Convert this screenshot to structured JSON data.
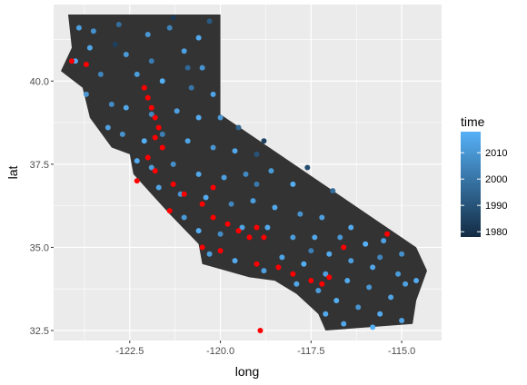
{
  "chart_data": {
    "type": "scatter",
    "xlabel": "long",
    "ylabel": "lat",
    "xlim": [
      -124.6,
      -113.9
    ],
    "ylim": [
      32.2,
      42.3
    ],
    "x_ticks": [
      -122.5,
      -120.0,
      -117.5,
      -115.0
    ],
    "x_tick_labels": [
      "-122.5",
      "-120.0",
      "-117.5",
      "-115.0"
    ],
    "y_ticks": [
      32.5,
      35.0,
      37.5,
      40.0
    ],
    "y_tick_labels": [
      "32.5",
      "35.0",
      "37.5",
      "40.0"
    ],
    "grid": true,
    "panel_background": "#ebebeb",
    "grid_color": "#ffffff",
    "map_fill": "#333333",
    "highlight_color": "#ff0000",
    "legend": {
      "title": "time",
      "placement": "right",
      "range": [
        1978,
        2018
      ],
      "low_color": "#132b43",
      "high_color": "#56b1f7",
      "ticks": [
        1980,
        1990,
        2000,
        2010
      ],
      "tick_labels": [
        "1980",
        "1990",
        "2000",
        "2010"
      ]
    },
    "state_outline": [
      [
        -124.2,
        42.0
      ],
      [
        -120.0,
        42.0
      ],
      [
        -120.0,
        39.0
      ],
      [
        -114.6,
        35.0
      ],
      [
        -114.3,
        34.3
      ],
      [
        -114.6,
        33.4
      ],
      [
        -114.7,
        32.7
      ],
      [
        -117.1,
        32.5
      ],
      [
        -117.3,
        33.0
      ],
      [
        -117.9,
        33.6
      ],
      [
        -118.5,
        34.0
      ],
      [
        -119.2,
        34.1
      ],
      [
        -120.5,
        34.5
      ],
      [
        -120.6,
        35.1
      ],
      [
        -121.4,
        36.0
      ],
      [
        -121.9,
        36.6
      ],
      [
        -122.4,
        37.2
      ],
      [
        -122.5,
        37.8
      ],
      [
        -123.0,
        38.0
      ],
      [
        -123.6,
        38.9
      ],
      [
        -123.8,
        39.8
      ],
      [
        -124.4,
        40.3
      ],
      [
        -124.1,
        41.0
      ],
      [
        -124.2,
        42.0
      ]
    ],
    "series": [
      {
        "kind": "observations",
        "points": [
          [
            -123.9,
            41.6,
            2012
          ],
          [
            -123.5,
            41.5,
            2008
          ],
          [
            -122.8,
            41.7,
            1998
          ],
          [
            -122.0,
            41.4,
            2010
          ],
          [
            -121.4,
            41.6,
            2004
          ],
          [
            -120.6,
            41.3,
            2015
          ],
          [
            -120.3,
            41.8,
            1992
          ],
          [
            -123.6,
            41.0,
            2014
          ],
          [
            -122.6,
            40.8,
            2011
          ],
          [
            -121.9,
            40.6,
            2002
          ],
          [
            -121.0,
            40.9,
            2013
          ],
          [
            -120.5,
            40.4,
            2009
          ],
          [
            -124.0,
            40.6,
            2016
          ],
          [
            -123.3,
            40.2,
            2005
          ],
          [
            -122.3,
            40.2,
            2012
          ],
          [
            -121.6,
            40.0,
            2017
          ],
          [
            -120.8,
            39.8,
            2000
          ],
          [
            -120.2,
            39.6,
            2014
          ],
          [
            -123.7,
            39.6,
            2010
          ],
          [
            -123.0,
            39.3,
            2007
          ],
          [
            -122.6,
            39.2,
            2015
          ],
          [
            -121.9,
            39.0,
            2006
          ],
          [
            -121.2,
            39.1,
            2013
          ],
          [
            -120.6,
            38.9,
            2016
          ],
          [
            -120.0,
            38.9,
            2011
          ],
          [
            -119.5,
            38.6,
            1995
          ],
          [
            -123.1,
            38.6,
            2013
          ],
          [
            -122.7,
            38.4,
            2009
          ],
          [
            -122.1,
            38.2,
            2017
          ],
          [
            -121.6,
            38.4,
            2003
          ],
          [
            -120.9,
            38.2,
            2014
          ],
          [
            -120.2,
            38.0,
            2010
          ],
          [
            -119.6,
            37.9,
            2015
          ],
          [
            -119.0,
            37.8,
            1990
          ],
          [
            -122.3,
            37.6,
            2016
          ],
          [
            -121.9,
            37.4,
            2012
          ],
          [
            -121.3,
            37.5,
            2008
          ],
          [
            -120.6,
            37.2,
            2015
          ],
          [
            -119.9,
            37.1,
            2013
          ],
          [
            -119.3,
            37.2,
            2006
          ],
          [
            -118.6,
            37.3,
            2011
          ],
          [
            -118.0,
            36.9,
            2017
          ],
          [
            -121.7,
            36.8,
            2014
          ],
          [
            -121.1,
            36.6,
            2010
          ],
          [
            -120.4,
            36.5,
            2016
          ],
          [
            -119.7,
            36.3,
            2005
          ],
          [
            -119.1,
            36.4,
            2012
          ],
          [
            -118.5,
            36.2,
            2015
          ],
          [
            -117.8,
            36.0,
            2009
          ],
          [
            -117.2,
            35.9,
            2013
          ],
          [
            -121.0,
            35.9,
            2011
          ],
          [
            -120.6,
            35.5,
            2017
          ],
          [
            -120.0,
            35.4,
            2007
          ],
          [
            -119.4,
            35.6,
            2014
          ],
          [
            -118.7,
            35.6,
            2016
          ],
          [
            -118.0,
            35.3,
            2012
          ],
          [
            -117.4,
            35.3,
            2015
          ],
          [
            -116.7,
            35.3,
            2010
          ],
          [
            -116.0,
            35.1,
            2018
          ],
          [
            -115.5,
            35.2,
            2013
          ],
          [
            -115.0,
            34.8,
            2008
          ],
          [
            -117.0,
            34.8,
            2016
          ],
          [
            -116.4,
            34.6,
            2012
          ],
          [
            -115.8,
            34.4,
            2015
          ],
          [
            -115.1,
            34.2,
            2011
          ],
          [
            -114.6,
            34.0,
            2016
          ],
          [
            -118.3,
            34.7,
            2014
          ],
          [
            -117.7,
            34.5,
            2017
          ],
          [
            -117.1,
            34.2,
            2013
          ],
          [
            -116.5,
            34.0,
            2016
          ],
          [
            -115.9,
            33.8,
            2010
          ],
          [
            -115.3,
            33.5,
            2014
          ],
          [
            -117.9,
            33.9,
            2015
          ],
          [
            -117.3,
            33.7,
            2012
          ],
          [
            -116.8,
            33.4,
            2017
          ],
          [
            -116.2,
            33.2,
            2009
          ],
          [
            -115.6,
            33.0,
            2016
          ],
          [
            -115.0,
            32.8,
            2014
          ],
          [
            -117.1,
            33.0,
            2016
          ],
          [
            -116.6,
            32.7,
            2015
          ],
          [
            -115.8,
            32.6,
            2017
          ],
          [
            -118.8,
            34.3,
            2013
          ],
          [
            -119.6,
            34.6,
            2016
          ],
          [
            -120.3,
            34.8,
            2012
          ],
          [
            -116.9,
            36.7,
            1997
          ],
          [
            -117.6,
            37.4,
            1988
          ],
          [
            -118.8,
            38.2,
            1985
          ],
          [
            -122.9,
            41.1,
            1984
          ],
          [
            -121.3,
            41.9,
            1982
          ],
          [
            -119.0,
            36.9,
            2001
          ],
          [
            -120.9,
            40.4,
            1996
          ],
          [
            -117.5,
            34.9,
            2003
          ],
          [
            -115.6,
            34.7,
            2005
          ],
          [
            -116.4,
            35.6,
            2016
          ],
          [
            -114.9,
            33.9,
            2013
          ]
        ]
      },
      {
        "kind": "highlighted",
        "color": "#ff0000",
        "points": [
          [
            -123.7,
            40.5
          ],
          [
            -124.1,
            40.6
          ],
          [
            -122.1,
            39.8
          ],
          [
            -122.0,
            39.5
          ],
          [
            -121.9,
            39.2
          ],
          [
            -121.8,
            38.9
          ],
          [
            -121.7,
            38.6
          ],
          [
            -121.8,
            38.3
          ],
          [
            -121.6,
            38.0
          ],
          [
            -122.0,
            37.7
          ],
          [
            -121.8,
            37.3
          ],
          [
            -122.3,
            37.0
          ],
          [
            -121.3,
            36.9
          ],
          [
            -121.0,
            36.6
          ],
          [
            -120.5,
            36.3
          ],
          [
            -121.4,
            36.1
          ],
          [
            -120.2,
            35.9
          ],
          [
            -119.8,
            35.7
          ],
          [
            -119.5,
            35.5
          ],
          [
            -119.0,
            35.6
          ],
          [
            -118.8,
            35.3
          ],
          [
            -119.2,
            35.3
          ],
          [
            -120.5,
            35.0
          ],
          [
            -120.0,
            34.9
          ],
          [
            -119.0,
            34.5
          ],
          [
            -118.4,
            34.4
          ],
          [
            -118.0,
            34.2
          ],
          [
            -117.5,
            34.0
          ],
          [
            -117.2,
            33.9
          ],
          [
            -117.0,
            34.1
          ],
          [
            -118.9,
            32.5
          ],
          [
            -115.4,
            35.4
          ],
          [
            -116.6,
            35.0
          ],
          [
            -120.2,
            36.8
          ]
        ]
      }
    ]
  }
}
